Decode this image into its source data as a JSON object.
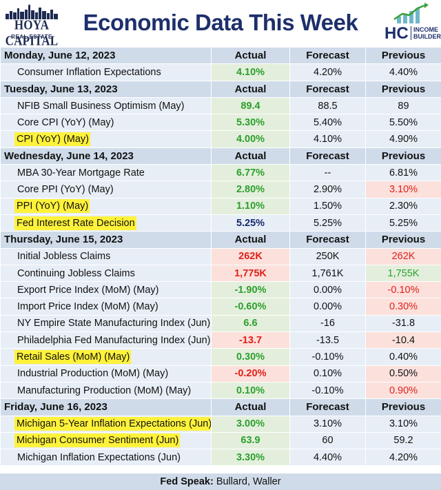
{
  "header": {
    "left_logo_brand": "HOYA CAPITAL",
    "left_logo_sub": "REAL ESTATE",
    "title": "Economic Data This Week",
    "right_logo_hc": "HC",
    "right_logo_line1": "INCOME",
    "right_logo_line2": "BUILDER"
  },
  "columns": {
    "actual": "Actual",
    "forecast": "Forecast",
    "previous": "Previous"
  },
  "colors": {
    "green_text": "#2d9f2d",
    "red_text": "#e0201a",
    "navy_title": "#1d2f6b",
    "highlight": "#fff23a"
  },
  "days": [
    {
      "label": "Monday, June 12, 2023",
      "rows": [
        {
          "name": "Consumer Inflation Expectations",
          "actual": "4.10%",
          "forecast": "4.20%",
          "previous": "4.40%",
          "highlight": false,
          "actual_color": "green",
          "actual_bg": "green",
          "previous_color": "black",
          "previous_bg": "none"
        }
      ]
    },
    {
      "label": "Tuesday, June 13, 2023",
      "rows": [
        {
          "name": "NFIB Small Business Optimism (May)",
          "actual": "89.4",
          "forecast": "88.5",
          "previous": "89",
          "highlight": false,
          "actual_color": "green",
          "actual_bg": "green",
          "previous_color": "black",
          "previous_bg": "none"
        },
        {
          "name": "Core CPI (YoY) (May)",
          "actual": "5.30%",
          "forecast": "5.40%",
          "previous": "5.50%",
          "highlight": false,
          "actual_color": "green",
          "actual_bg": "green",
          "previous_color": "black",
          "previous_bg": "none"
        },
        {
          "name": "CPI (YoY) (May)",
          "actual": "4.00%",
          "forecast": "4.10%",
          "previous": "4.90%",
          "highlight": true,
          "actual_color": "green",
          "actual_bg": "green",
          "previous_color": "black",
          "previous_bg": "none"
        }
      ]
    },
    {
      "label": "Wednesday, June 14, 2023",
      "rows": [
        {
          "name": "MBA 30-Year Mortgage Rate",
          "actual": "6.77%",
          "forecast": "--",
          "previous": "6.81%",
          "highlight": false,
          "actual_color": "green",
          "actual_bg": "green",
          "previous_color": "black",
          "previous_bg": "none"
        },
        {
          "name": "Core PPI (YoY) (May)",
          "actual": "2.80%",
          "forecast": "2.90%",
          "previous": "3.10%",
          "highlight": false,
          "actual_color": "green",
          "actual_bg": "green",
          "previous_color": "red",
          "previous_bg": "red"
        },
        {
          "name": "PPI (YoY) (May)",
          "actual": "1.10%",
          "forecast": "1.50%",
          "previous": "2.30%",
          "highlight": true,
          "actual_color": "green",
          "actual_bg": "green",
          "previous_color": "black",
          "previous_bg": "none"
        },
        {
          "name": "Fed Interest Rate Decision",
          "actual": "5.25%",
          "forecast": "5.25%",
          "previous": "5.25%",
          "highlight": true,
          "actual_color": "navy",
          "actual_bg": "none",
          "previous_color": "black",
          "previous_bg": "none"
        }
      ]
    },
    {
      "label": "Thursday, June 15, 2023",
      "rows": [
        {
          "name": "Initial Jobless Claims",
          "actual": "262K",
          "forecast": "250K",
          "previous": "262K",
          "highlight": false,
          "actual_color": "red",
          "actual_bg": "red",
          "previous_color": "red",
          "previous_bg": "red"
        },
        {
          "name": "Continuing Jobless Claims",
          "actual": "1,775K",
          "forecast": "1,761K",
          "previous": "1,755K",
          "highlight": false,
          "actual_color": "red",
          "actual_bg": "red",
          "previous_color": "green",
          "previous_bg": "green"
        },
        {
          "name": "Export Price Index (MoM) (May)",
          "actual": "-1.90%",
          "forecast": "0.00%",
          "previous": "-0.10%",
          "highlight": false,
          "actual_color": "green",
          "actual_bg": "green",
          "previous_color": "red",
          "previous_bg": "red"
        },
        {
          "name": "Import Price Index (MoM) (May)",
          "actual": "-0.60%",
          "forecast": "0.00%",
          "previous": "0.30%",
          "highlight": false,
          "actual_color": "green",
          "actual_bg": "green",
          "previous_color": "red",
          "previous_bg": "red"
        },
        {
          "name": "NY Empire State Manufacturing Index (Jun)",
          "actual": "6.6",
          "forecast": "-16",
          "previous": "-31.8",
          "highlight": false,
          "actual_color": "green",
          "actual_bg": "green",
          "previous_color": "black",
          "previous_bg": "none"
        },
        {
          "name": "Philadelphia Fed Manufacturing Index (Jun)",
          "actual": "-13.7",
          "forecast": "-13.5",
          "previous": "-10.4",
          "highlight": false,
          "actual_color": "red",
          "actual_bg": "red",
          "previous_color": "black",
          "previous_bg": "red"
        },
        {
          "name": "Retail Sales (MoM) (May)",
          "actual": "0.30%",
          "forecast": "-0.10%",
          "previous": "0.40%",
          "highlight": true,
          "actual_color": "green",
          "actual_bg": "green",
          "previous_color": "black",
          "previous_bg": "none"
        },
        {
          "name": "Industrial Production (MoM) (May)",
          "actual": "-0.20%",
          "forecast": "0.10%",
          "previous": "0.50%",
          "highlight": false,
          "actual_color": "red",
          "actual_bg": "red",
          "previous_color": "black",
          "previous_bg": "red"
        },
        {
          "name": "Manufacturing Production (MoM) (May)",
          "actual": "0.10%",
          "forecast": "-0.10%",
          "previous": "0.90%",
          "highlight": false,
          "actual_color": "green",
          "actual_bg": "green",
          "previous_color": "red",
          "previous_bg": "red"
        }
      ]
    },
    {
      "label": "Friday, June 16, 2023",
      "rows": [
        {
          "name": "Michigan 5-Year Inflation Expectations (Jun)",
          "actual": "3.00%",
          "forecast": "3.10%",
          "previous": "3.10%",
          "highlight": true,
          "actual_color": "green",
          "actual_bg": "green",
          "previous_color": "black",
          "previous_bg": "none"
        },
        {
          "name": "Michigan Consumer Sentiment (Jun)",
          "actual": "63.9",
          "forecast": "60",
          "previous": "59.2",
          "highlight": true,
          "actual_color": "green",
          "actual_bg": "green",
          "previous_color": "black",
          "previous_bg": "none"
        },
        {
          "name": "Michigan Inflation Expectations (Jun)",
          "actual": "3.30%",
          "forecast": "4.40%",
          "previous": "4.20%",
          "highlight": false,
          "actual_color": "green",
          "actual_bg": "green",
          "previous_color": "black",
          "previous_bg": "none"
        }
      ]
    }
  ],
  "footer": {
    "label": "Fed Speak:",
    "speakers": "Bullard, Waller"
  }
}
